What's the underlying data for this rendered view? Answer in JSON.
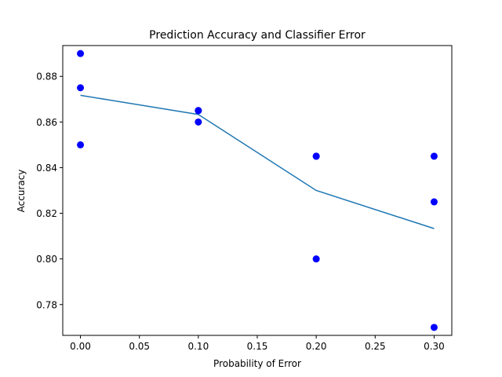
{
  "chart_data": {
    "type": "scatter",
    "title": "Prediction Accuracy and Classifier Error",
    "xlabel": "Probability of Error",
    "ylabel": "Accuracy",
    "xlim": [
      -0.015,
      0.315
    ],
    "ylim": [
      0.7665,
      0.8935
    ],
    "xticks": [
      0.0,
      0.05,
      0.1,
      0.15,
      0.2,
      0.25,
      0.3
    ],
    "xtick_labels": [
      "0.00",
      "0.05",
      "0.10",
      "0.15",
      "0.20",
      "0.25",
      "0.30"
    ],
    "yticks": [
      0.78,
      0.8,
      0.82,
      0.84,
      0.86,
      0.88
    ],
    "ytick_labels": [
      "0.78",
      "0.80",
      "0.82",
      "0.84",
      "0.86",
      "0.88"
    ],
    "grid": false,
    "series": [
      {
        "kind": "scatter",
        "color": "#0000ff",
        "points": [
          {
            "x": 0.0,
            "y": 0.89
          },
          {
            "x": 0.0,
            "y": 0.875
          },
          {
            "x": 0.0,
            "y": 0.85
          },
          {
            "x": 0.1,
            "y": 0.865
          },
          {
            "x": 0.1,
            "y": 0.865
          },
          {
            "x": 0.1,
            "y": 0.86
          },
          {
            "x": 0.2,
            "y": 0.845
          },
          {
            "x": 0.2,
            "y": 0.845
          },
          {
            "x": 0.2,
            "y": 0.8
          },
          {
            "x": 0.3,
            "y": 0.845
          },
          {
            "x": 0.3,
            "y": 0.825
          },
          {
            "x": 0.3,
            "y": 0.77
          }
        ]
      },
      {
        "kind": "line",
        "color": "#1f77b4",
        "points": [
          {
            "x": 0.0,
            "y": 0.8717
          },
          {
            "x": 0.1,
            "y": 0.8633
          },
          {
            "x": 0.2,
            "y": 0.83
          },
          {
            "x": 0.3,
            "y": 0.8133
          }
        ]
      }
    ]
  }
}
